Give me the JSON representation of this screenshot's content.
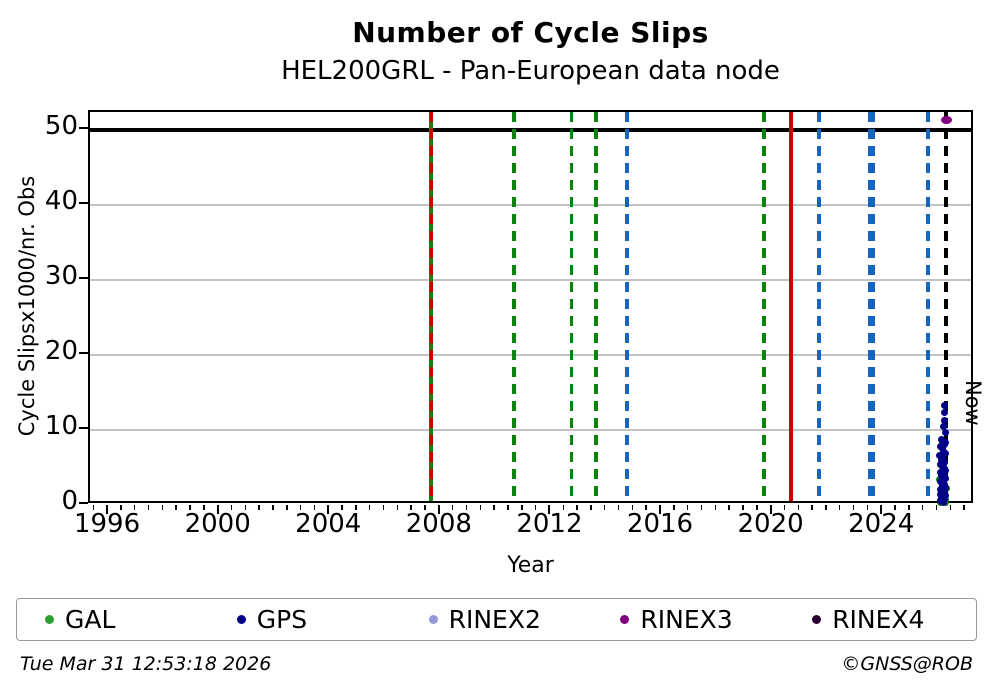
{
  "header": {
    "title": "Number of Cycle Slips",
    "subtitle": "HEL200GRL - Pan-European data node"
  },
  "footer": {
    "timestamp": "Tue Mar 31 12:53:18 2026",
    "credit": "©GNSS@ROB"
  },
  "legend": {
    "items": [
      {
        "label": "GAL",
        "color": "#2ca02c"
      },
      {
        "label": "GPS",
        "color": "#00008b"
      },
      {
        "label": "RINEX2",
        "color": "#9898d9"
      },
      {
        "label": "RINEX3",
        "color": "#800080"
      },
      {
        "label": "RINEX4",
        "color": "#250030"
      }
    ]
  },
  "chart_data": {
    "type": "scatter",
    "title": "Number of Cycle Slips",
    "subtitle": "HEL200GRL - Pan-European data node",
    "xlabel": "Year",
    "ylabel": "Cycle Slipsx1000/nr. Obs",
    "xlim": [
      1995.31,
      2027.32
    ],
    "ylim": [
      0,
      52.4
    ],
    "x_ticks": [
      1996,
      2000,
      2004,
      2008,
      2012,
      2016,
      2020,
      2024
    ],
    "x_minor_start": 1995.5,
    "x_minor_step": 0.5,
    "y_ticks": [
      0,
      10,
      20,
      30,
      40,
      50
    ],
    "y_gridlines": [
      10,
      20,
      30,
      40
    ],
    "grid": "horizontal-only",
    "legend_position": "bottom",
    "threshold_line": {
      "value": 50,
      "color": "#000000",
      "width": 3.5
    },
    "now_line": {
      "year": 2026.27,
      "label": "Now",
      "color": "#000000",
      "style": "dashed",
      "width": 3.5
    },
    "event_lines": [
      {
        "year": 2007.65,
        "color": "#0c840c",
        "style": "solid",
        "width": 4.5
      },
      {
        "year": 2007.65,
        "color": "#cc0000",
        "style": "dashed",
        "width": 3
      },
      {
        "year": 2010.65,
        "color": "#0c840c",
        "style": "dashed",
        "width": 3.5
      },
      {
        "year": 2012.72,
        "color": "#0c840c",
        "style": "dashed",
        "width": 3.5
      },
      {
        "year": 2013.62,
        "color": "#0c840c",
        "style": "dashed",
        "width": 3.5
      },
      {
        "year": 2014.73,
        "color": "#1565c0",
        "style": "dashed",
        "width": 3.5
      },
      {
        "year": 2019.69,
        "color": "#0c840c",
        "style": "dashed",
        "width": 3.5
      },
      {
        "year": 2020.66,
        "color": "#cc0000",
        "style": "solid",
        "width": 4
      },
      {
        "year": 2023.52,
        "color": "#1565c0",
        "style": "dashed",
        "width": 3.5
      },
      {
        "year": 2023.64,
        "color": "#1565c0",
        "style": "dashed",
        "width": 3.5
      },
      {
        "year": 2021.68,
        "color": "#1565c0",
        "style": "dashed",
        "width": 3.5
      },
      {
        "year": 2025.62,
        "color": "#1565c0",
        "style": "dashed",
        "width": 3.5
      }
    ],
    "series": [
      {
        "name": "GAL",
        "color": "#0c840c",
        "marker_size": [
          7,
          7
        ],
        "points": [
          [
            2026.06,
            0.3
          ],
          [
            2026.24,
            0.4
          ],
          [
            2026.13,
            1.0
          ],
          [
            2026.28,
            2.2
          ],
          [
            2026.04,
            3.4
          ],
          [
            2026.19,
            5.8
          ],
          [
            2026.27,
            0.8
          ]
        ]
      },
      {
        "name": "GPS",
        "color": "#00008b",
        "marker_size": [
          7,
          7
        ],
        "points": [
          [
            2026.22,
            13.3
          ],
          [
            2026.2,
            12.3
          ],
          [
            2026.21,
            11.3
          ],
          [
            2026.18,
            10.5
          ],
          [
            2026.24,
            9.7
          ],
          [
            2026.1,
            8.8
          ],
          [
            2026.16,
            8.5
          ],
          [
            2026.21,
            8.1
          ],
          [
            2026.07,
            7.8
          ],
          [
            2026.13,
            7.5
          ],
          [
            2026.19,
            7.2
          ],
          [
            2026.25,
            6.9
          ],
          [
            2026.05,
            6.6
          ],
          [
            2026.11,
            6.3
          ],
          [
            2026.17,
            6.0
          ],
          [
            2026.23,
            5.7
          ],
          [
            2026.08,
            5.4
          ],
          [
            2026.14,
            5.1
          ],
          [
            2026.2,
            4.9
          ],
          [
            2026.26,
            4.6
          ],
          [
            2026.06,
            4.3
          ],
          [
            2026.12,
            4.0
          ],
          [
            2026.18,
            3.8
          ],
          [
            2026.24,
            3.5
          ],
          [
            2026.09,
            3.2
          ],
          [
            2026.15,
            2.9
          ],
          [
            2026.21,
            2.7
          ],
          [
            2026.27,
            2.4
          ],
          [
            2026.07,
            2.1
          ],
          [
            2026.13,
            1.9
          ],
          [
            2026.19,
            1.6
          ],
          [
            2026.25,
            1.3
          ],
          [
            2026.1,
            1.1
          ],
          [
            2026.16,
            0.9
          ],
          [
            2026.22,
            0.7
          ],
          [
            2026.12,
            0.5
          ],
          [
            2026.18,
            0.4
          ],
          [
            2026.08,
            1.4
          ],
          [
            2026.14,
            2.6
          ],
          [
            2026.23,
            3.9
          ],
          [
            2026.11,
            5.9
          ],
          [
            2026.17,
            7.9
          ],
          [
            2026.26,
            8.3
          ],
          [
            2026.09,
            0.6
          ],
          [
            2026.2,
            1.8
          ]
        ]
      },
      {
        "name": "RINEX3",
        "color": "#800080",
        "marker_size": [
          11,
          8
        ],
        "points": [
          [
            2026.3,
            51.4
          ]
        ]
      }
    ]
  }
}
